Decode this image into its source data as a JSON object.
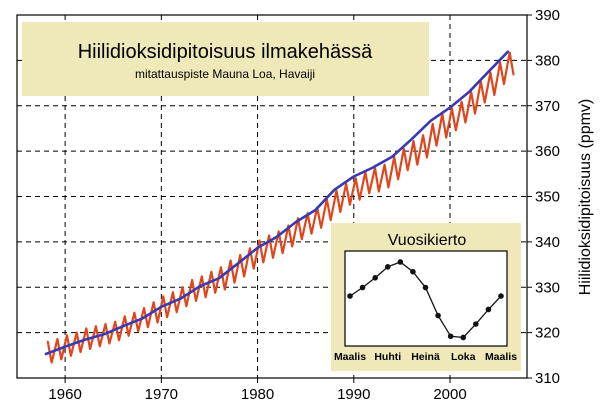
{
  "chart_data": [
    {
      "type": "line",
      "title": "Hiilidioksidipitoisuus ilmakehässä",
      "subtitle": "mitattauspiste Mauna Loa, Havaiji",
      "xlabel": "",
      "ylabel": "Hiilidioksidipitoisuus (ppmv)",
      "xlim": [
        1955,
        2008
      ],
      "ylim": [
        310,
        390
      ],
      "xticks": [
        1960,
        1970,
        1980,
        1990,
        2000
      ],
      "yticks": [
        310,
        320,
        330,
        340,
        350,
        360,
        370,
        380,
        390
      ],
      "grid": true,
      "y_axis_position": "right",
      "series": [
        {
          "kind": "monthly",
          "color": "#e0461e",
          "x": [
            1958.2,
            1958.6,
            1959.2,
            1959.6,
            1960.2,
            1960.6,
            1961.2,
            1961.6,
            1962.2,
            1962.6,
            1963.2,
            1963.6,
            1964.2,
            1964.6,
            1965.2,
            1965.6,
            1966.2,
            1966.6,
            1967.2,
            1967.6,
            1968.2,
            1968.6,
            1969.2,
            1969.6,
            1970.2,
            1970.6,
            1971.2,
            1971.6,
            1972.2,
            1972.6,
            1973.2,
            1973.6,
            1974.2,
            1974.6,
            1975.2,
            1975.6,
            1976.2,
            1976.6,
            1977.2,
            1977.6,
            1978.2,
            1978.6,
            1979.2,
            1979.6,
            1980.2,
            1980.6,
            1981.2,
            1981.6,
            1982.2,
            1982.6,
            1983.2,
            1983.6,
            1984.2,
            1984.6,
            1985.2,
            1985.6,
            1986.2,
            1986.6,
            1987.2,
            1987.6,
            1988.2,
            1988.6,
            1989.2,
            1989.6,
            1990.2,
            1990.6,
            1991.2,
            1991.6,
            1992.2,
            1992.6,
            1993.2,
            1993.6,
            1994.2,
            1994.6,
            1995.2,
            1995.6,
            1996.2,
            1996.6,
            1997.2,
            1997.6,
            1998.2,
            1998.6,
            1999.2,
            1999.6,
            2000.2,
            2000.6,
            2001.2,
            2001.6,
            2002.2,
            2002.6,
            2003.2,
            2003.6,
            2004.2,
            2004.6,
            2005.2,
            2005.6,
            2006.2,
            2006.6
          ],
          "y": [
            318.0,
            313.4,
            318.6,
            314.1,
            319.4,
            314.9,
            320.0,
            315.7,
            320.9,
            316.4,
            321.4,
            317.0,
            321.9,
            317.6,
            322.4,
            318.3,
            323.6,
            319.3,
            324.4,
            320.3,
            325.4,
            321.2,
            326.7,
            322.2,
            328.0,
            323.4,
            328.9,
            324.5,
            330.0,
            325.8,
            331.6,
            327.0,
            332.4,
            327.8,
            333.4,
            328.8,
            334.4,
            329.5,
            335.9,
            331.0,
            337.1,
            332.4,
            338.6,
            334.1,
            340.3,
            335.5,
            341.4,
            336.5,
            342.3,
            337.5,
            343.6,
            339.0,
            345.2,
            340.6,
            346.3,
            341.8,
            347.6,
            343.1,
            349.4,
            344.8,
            351.3,
            346.6,
            352.8,
            348.2,
            354.0,
            349.3,
            355.4,
            350.7,
            356.3,
            351.1,
            357.0,
            352.0,
            358.7,
            353.8,
            360.5,
            355.8,
            362.2,
            357.0,
            363.5,
            358.6,
            366.0,
            361.2,
            368.2,
            363.0,
            369.4,
            364.6,
            370.9,
            366.3,
            373.0,
            368.3,
            375.3,
            370.7,
            377.3,
            372.4,
            379.5,
            374.8,
            381.7,
            376.9
          ]
        },
        {
          "kind": "trend",
          "color": "#3a3ab0",
          "x": [
            1958,
            1960,
            1962,
            1964,
            1966,
            1968,
            1970,
            1972,
            1974,
            1976,
            1978,
            1980,
            1982,
            1984,
            1986,
            1988,
            1990,
            1992,
            1994,
            1996,
            1998,
            2000,
            2002,
            2004,
            2006
          ],
          "y": [
            315.3,
            316.9,
            318.4,
            319.6,
            321.4,
            323.1,
            325.7,
            327.5,
            330.2,
            332.0,
            335.3,
            338.7,
            341.1,
            344.4,
            347.0,
            351.5,
            354.4,
            356.4,
            358.8,
            362.6,
            366.7,
            369.6,
            373.1,
            377.5,
            381.9
          ]
        }
      ]
    },
    {
      "type": "line",
      "title": "Vuosikierto",
      "xlabel": "",
      "ylabel": "",
      "categories": [
        "Maalis",
        "Huhti",
        "Heinä",
        "Loka",
        "Maalis"
      ],
      "x": [
        0,
        1,
        2,
        3,
        4,
        5,
        6,
        7,
        8,
        9,
        10,
        11,
        12
      ],
      "y": [
        1.3,
        2.0,
        2.8,
        3.7,
        4.1,
        3.3,
        2.0,
        -0.3,
        -2.0,
        -2.1,
        -1.0,
        0.2,
        1.3
      ],
      "ylim": [
        -2.8,
        5.0
      ],
      "grid": false,
      "marker": "circle",
      "color": "#111111"
    }
  ],
  "colors": {
    "title_box": "#efe9b9",
    "inset_box": "#efe9b9",
    "monthly": "#e0461e",
    "trend": "#3a3ab0"
  }
}
